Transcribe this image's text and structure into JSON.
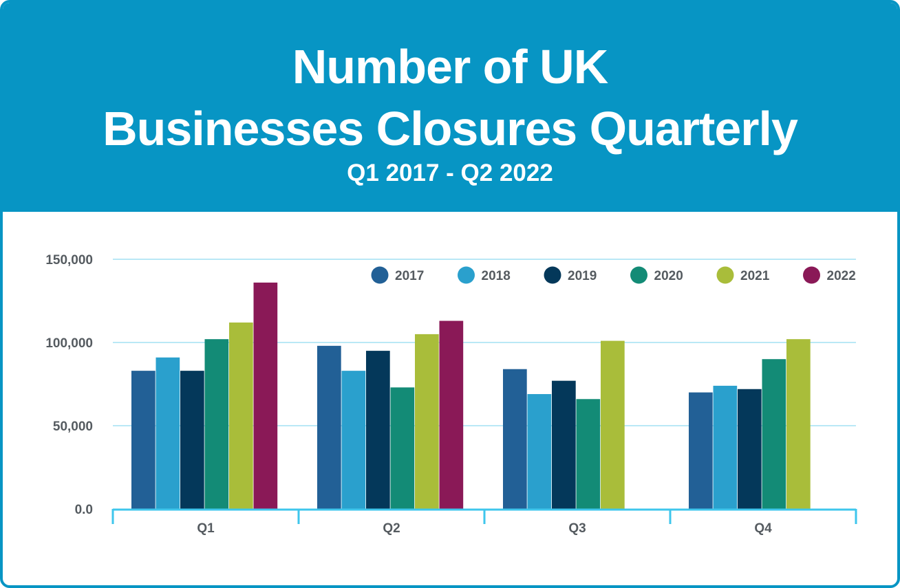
{
  "header": {
    "title_line1": "Number of UK",
    "title_line2": "Businesses Closures Quarterly",
    "subtitle": "Q1 2017 - Q2 2022"
  },
  "colors": {
    "header_bg": "#0795c4",
    "axis": "#3ec6ec",
    "grid": "#8fdaf0"
  },
  "chart_data": {
    "type": "bar",
    "categories": [
      "Q1",
      "Q2",
      "Q3",
      "Q4"
    ],
    "series": [
      {
        "name": "2017",
        "color": "#226096",
        "values": [
          83000,
          98000,
          84000,
          70000
        ]
      },
      {
        "name": "2018",
        "color": "#2aa0cd",
        "values": [
          91000,
          83000,
          69000,
          74000
        ]
      },
      {
        "name": "2019",
        "color": "#04385a",
        "values": [
          83000,
          95000,
          77000,
          72000
        ]
      },
      {
        "name": "2020",
        "color": "#138b76",
        "values": [
          102000,
          73000,
          66000,
          90000
        ]
      },
      {
        "name": "2021",
        "color": "#a9bd3a",
        "values": [
          112000,
          105000,
          101000,
          102000
        ]
      },
      {
        "name": "2022",
        "color": "#8a1957",
        "values": [
          136000,
          113000,
          null,
          null
        ]
      }
    ],
    "yticks": [
      {
        "value": 0,
        "label": "0.0"
      },
      {
        "value": 50000,
        "label": "50,000"
      },
      {
        "value": 100000,
        "label": "100,000"
      },
      {
        "value": 150000,
        "label": "150,000"
      }
    ],
    "ylim": [
      0,
      150000
    ],
    "grid": true,
    "legend": "top-right"
  }
}
